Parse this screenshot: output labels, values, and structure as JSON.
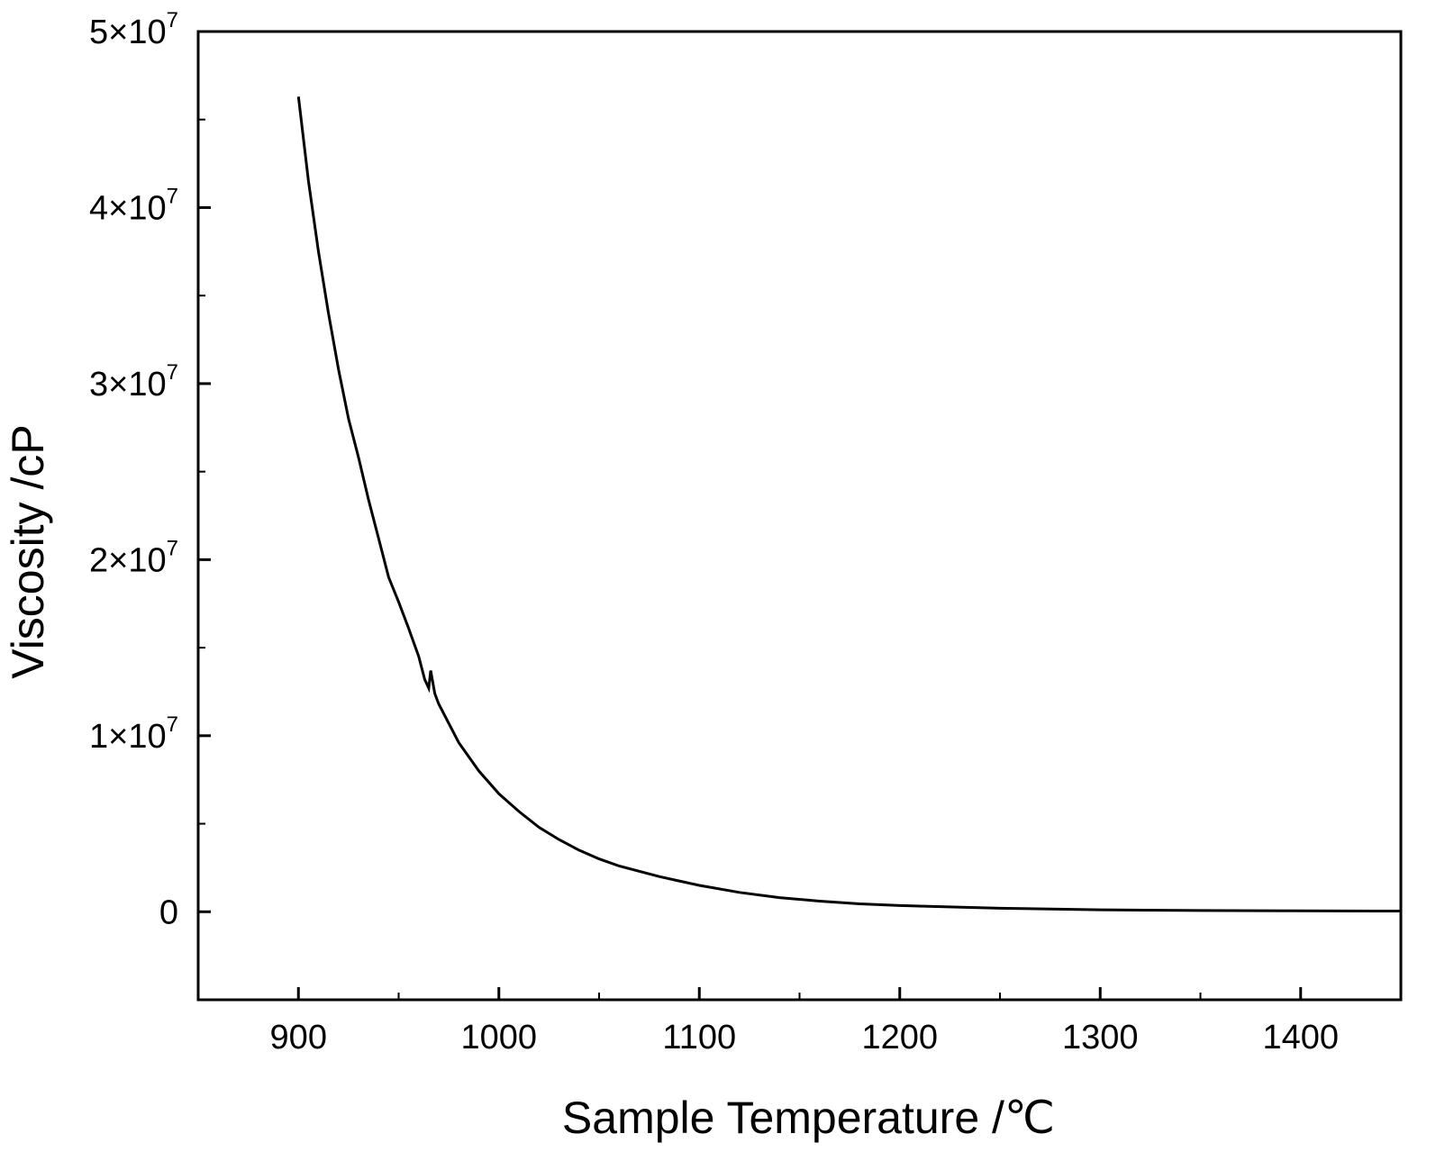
{
  "chart_data": {
    "type": "line",
    "title": "",
    "xlabel": "Sample Temperature /℃",
    "ylabel": "Viscosity /cP",
    "xlim": [
      850,
      1450
    ],
    "ylim": [
      -5000000,
      50000000
    ],
    "grid": false,
    "x_ticks": [
      900,
      1000,
      1100,
      1200,
      1300,
      1400
    ],
    "x_tick_labels": [
      "900",
      "1000",
      "1100",
      "1200",
      "1300",
      "1400"
    ],
    "y_ticks": [
      {
        "value": 0,
        "mantissa": "0",
        "exponent": ""
      },
      {
        "value": 10000000,
        "mantissa": "1×10",
        "exponent": "7"
      },
      {
        "value": 20000000,
        "mantissa": "2×10",
        "exponent": "7"
      },
      {
        "value": 30000000,
        "mantissa": "3×10",
        "exponent": "7"
      },
      {
        "value": 40000000,
        "mantissa": "4×10",
        "exponent": "7"
      },
      {
        "value": 50000000,
        "mantissa": "5×10",
        "exponent": "7"
      }
    ],
    "series": [
      {
        "x": [
          900,
          905,
          910,
          915,
          920,
          925,
          930,
          935,
          940,
          945,
          950,
          955,
          960,
          963,
          965,
          966,
          968,
          970,
          980,
          990,
          1000,
          1010,
          1020,
          1030,
          1040,
          1050,
          1060,
          1070,
          1080,
          1090,
          1100,
          1120,
          1140,
          1160,
          1180,
          1200,
          1250,
          1300,
          1350,
          1400,
          1450
        ],
        "y": [
          46300000,
          41500000,
          37500000,
          34000000,
          30800000,
          28000000,
          25800000,
          23400000,
          21200000,
          19000000,
          17600000,
          16100000,
          14500000,
          13200000,
          12700000,
          13700000,
          12400000,
          11800000,
          9600000,
          8000000,
          6700000,
          5700000,
          4800000,
          4100000,
          3500000,
          3000000,
          2600000,
          2300000,
          2000000,
          1750000,
          1500000,
          1100000,
          800000,
          600000,
          450000,
          350000,
          200000,
          110000,
          70000,
          50000,
          40000
        ]
      }
    ]
  }
}
